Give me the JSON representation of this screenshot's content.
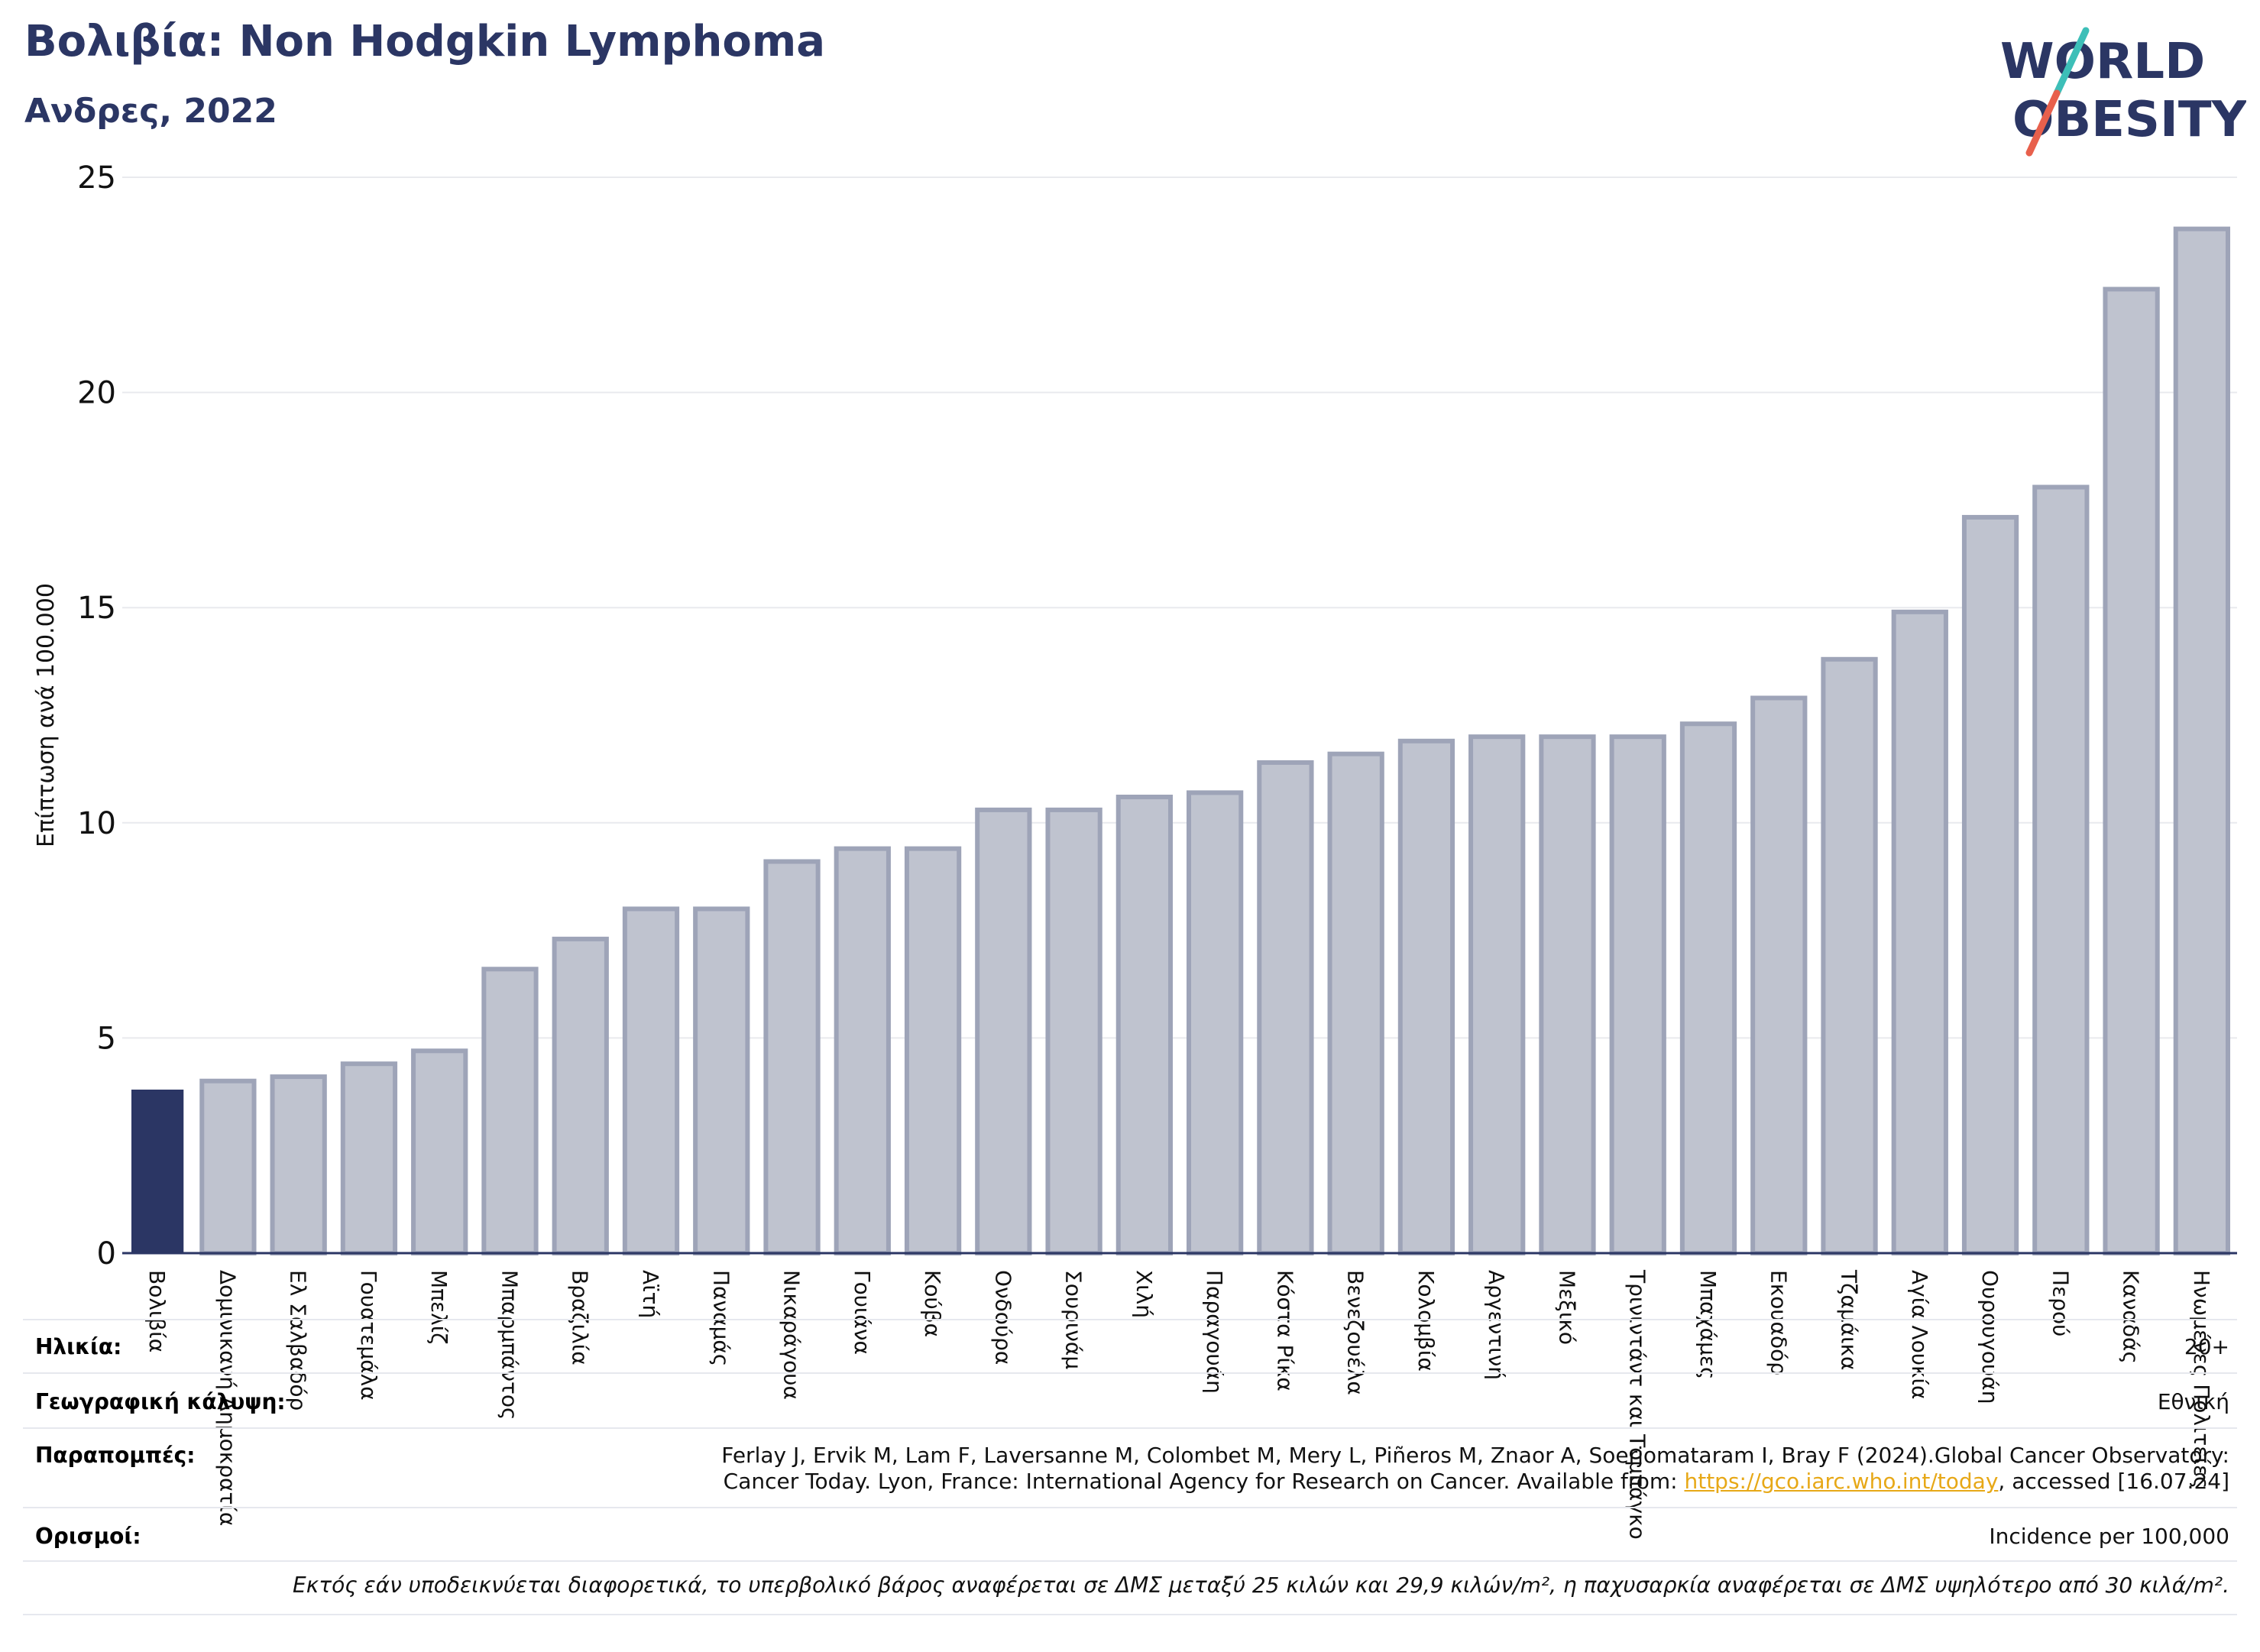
{
  "header": {
    "title": "Βολιβία: Non Hodgkin Lymphoma",
    "subtitle": "Ανδρες, 2022"
  },
  "logo": {
    "line1": "WORLD",
    "line2": "OBESITY",
    "accent_colors": [
      "#3dbfb8",
      "#e8604c"
    ],
    "text_color": "#2b3664"
  },
  "colors": {
    "highlight_bar": "#2b3664",
    "bar_fill": "#bfc3cf",
    "bar_stroke": "#9ea4b8"
  },
  "chart_data": {
    "type": "bar",
    "ylabel": "Επίπτωση ανά 100.000",
    "ylim": [
      0,
      25
    ],
    "yticks": [
      0,
      5,
      10,
      15,
      20,
      25
    ],
    "grid": true,
    "highlight": "Βολιβία",
    "categories": [
      "Βολιβία",
      "Δομινικανή Δημοκρατία",
      "Ελ Σαλβαδόρ",
      "Γουατεμάλα",
      "Μπελίζ",
      "Μπαρμπάντος",
      "Βραζιλία",
      "Αϊτή",
      "Παναμάς",
      "Νικαράγουα",
      "Γουιάνα",
      "Κούβα",
      "Ονδούρα",
      "Σουρινάμ",
      "Χιλή",
      "Παραγουάη",
      "Κόστα Ρίκα",
      "Βενεζουέλα",
      "Κολομβία",
      "Αργεντινή",
      "Μεξικό",
      "Τρινιντάντ και Τομπάγκο",
      "Μπαχάμες",
      "Εκουαδόρ",
      "Τζαμάικα",
      "Αγία Λουκία",
      "Ουρουγουάη",
      "Περού",
      "Καναδάς",
      "Ηνωμένες Πολιτείες"
    ],
    "values": [
      3.8,
      4.0,
      4.1,
      4.4,
      4.7,
      6.6,
      7.3,
      8.0,
      8.0,
      9.1,
      9.4,
      9.4,
      10.3,
      10.3,
      10.6,
      10.7,
      11.4,
      11.6,
      11.9,
      12.0,
      12.0,
      12.0,
      12.3,
      12.9,
      13.8,
      14.9,
      17.1,
      17.8,
      22.4,
      23.8
    ]
  },
  "footer": {
    "age_label": "Ηλικία:",
    "age_value": "20+",
    "coverage_label": "Γεωγραφική κάλυψη:",
    "coverage_value": "Εθνική",
    "references_label": "Παραπομπές:",
    "references_line1": "Ferlay J, Ervik M, Lam F, Laversanne M, Colombet M, Mery L, Piñeros M, Znaor A, Soerjomataram I, Bray F (2024).Global Cancer Observatory:",
    "references_line2_pre": "Cancer Today. Lyon, France: International Agency for Research on Cancer. Available from: ",
    "references_link": "https://gco.iarc.who.int/today",
    "references_line2_post": ", accessed [16.07.24]",
    "definitions_label": "Ορισμοί:",
    "definitions_value": "Incidence per 100,000",
    "note": "Εκτός εάν υποδεικνύεται διαφορετικά, το υπερβολικό βάρος αναφέρεται σε ΔΜΣ μεταξύ 25 κιλών και 29,9 κιλών/m², η παχυσαρκία αναφέρεται σε ΔΜΣ υψηλότερο από 30 κιλά/m²."
  }
}
